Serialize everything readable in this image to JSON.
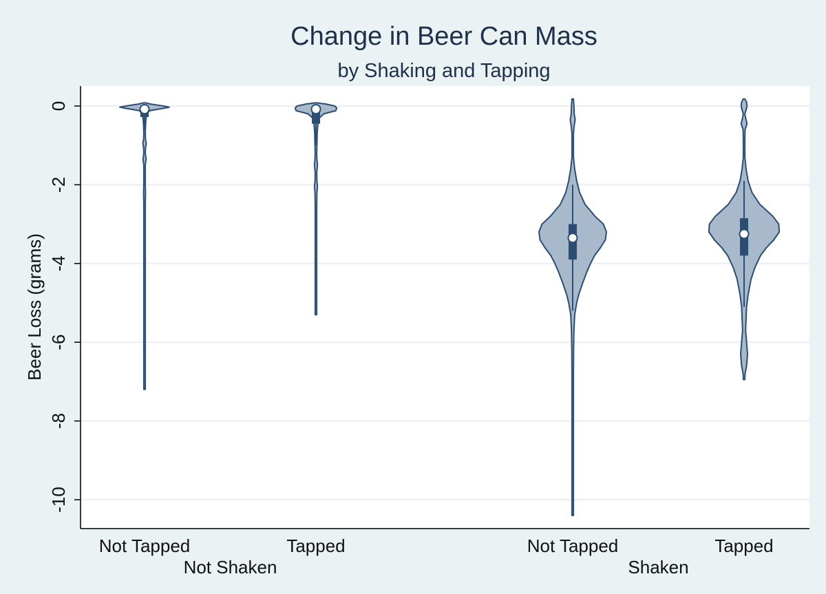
{
  "chart_data": {
    "type": "violin",
    "title": "Change in Beer Can Mass",
    "subtitle": "by Shaking and Tapping",
    "ylabel": "Beer Loss (grams)",
    "xlabel": "",
    "ylim": [
      -10.7,
      0.5
    ],
    "yticks": [
      0,
      -2,
      -4,
      -6,
      -8,
      -10
    ],
    "ytick_labels": [
      "0",
      "-2",
      "-4",
      "-6",
      "-8",
      "-10"
    ],
    "grid": true,
    "colors": {
      "background": "#eaf2f3",
      "plot_background": "#ffffff",
      "violin_fill": "#a9b9cc",
      "violin_stroke": "#2b4d72",
      "box_fill": "#2b4d72",
      "median_marker": "#ffffff",
      "grid": "#e8eef1",
      "text": "#1e2f4a"
    },
    "groups": [
      {
        "label": "Not Shaken",
        "categories": [
          "Not Tapped",
          "Tapped"
        ]
      },
      {
        "label": "Shaken",
        "categories": [
          "Not Tapped",
          "Tapped"
        ]
      }
    ],
    "series": [
      {
        "group": "Not Shaken",
        "category": "Not Tapped",
        "median": -0.08,
        "q1": -0.28,
        "q3": -0.02,
        "whisker_low": -0.6,
        "whisker_high": 0.05,
        "min": -7.2,
        "max": 0.08,
        "density": [
          [
            0.08,
            0.0
          ],
          [
            0.05,
            0.12
          ],
          [
            0.0,
            0.38
          ],
          [
            -0.03,
            0.5
          ],
          [
            -0.06,
            0.38
          ],
          [
            -0.12,
            0.1
          ],
          [
            -0.2,
            0.05
          ],
          [
            -0.3,
            0.03
          ],
          [
            -0.5,
            0.02
          ],
          [
            -0.7,
            0.013
          ],
          [
            -0.85,
            0.02
          ],
          [
            -0.95,
            0.035
          ],
          [
            -1.05,
            0.02
          ],
          [
            -1.2,
            0.015
          ],
          [
            -1.35,
            0.03
          ],
          [
            -1.5,
            0.013
          ],
          [
            -1.8,
            0.011
          ],
          [
            -2.0,
            0.012
          ],
          [
            -2.2,
            0.02
          ],
          [
            -2.45,
            0.011
          ],
          [
            -2.8,
            0.006
          ],
          [
            -3.5,
            0.004
          ],
          [
            -4.5,
            0.004
          ],
          [
            -5.5,
            0.004
          ],
          [
            -6.2,
            0.004
          ],
          [
            -7.2,
            0.0
          ]
        ]
      },
      {
        "group": "Not Shaken",
        "category": "Tapped",
        "median": -0.08,
        "q1": -0.45,
        "q3": -0.02,
        "whisker_low": -1.0,
        "whisker_high": 0.05,
        "min": -5.3,
        "max": 0.08,
        "density": [
          [
            0.08,
            0.0
          ],
          [
            0.05,
            0.2
          ],
          [
            0.0,
            0.38
          ],
          [
            -0.05,
            0.42
          ],
          [
            -0.12,
            0.4
          ],
          [
            -0.2,
            0.16
          ],
          [
            -0.3,
            0.07
          ],
          [
            -0.45,
            0.04
          ],
          [
            -0.7,
            0.025
          ],
          [
            -1.0,
            0.02
          ],
          [
            -1.2,
            0.015
          ],
          [
            -1.35,
            0.02
          ],
          [
            -1.5,
            0.03
          ],
          [
            -1.7,
            0.015
          ],
          [
            -1.9,
            0.018
          ],
          [
            -2.05,
            0.03
          ],
          [
            -2.2,
            0.02
          ],
          [
            -2.5,
            0.011
          ],
          [
            -3.0,
            0.008
          ],
          [
            -3.5,
            0.007
          ],
          [
            -4.0,
            0.007
          ],
          [
            -4.5,
            0.006
          ],
          [
            -5.0,
            0.005
          ],
          [
            -5.3,
            0.0
          ]
        ]
      },
      {
        "group": "Shaken",
        "category": "Not Tapped",
        "median": -3.35,
        "q1": -3.9,
        "q3": -3.0,
        "whisker_low": -5.2,
        "whisker_high": -2.0,
        "min": -10.4,
        "max": 0.18,
        "density": [
          [
            0.18,
            0.0
          ],
          [
            0.1,
            0.02
          ],
          [
            0.0,
            0.025
          ],
          [
            -0.2,
            0.03
          ],
          [
            -0.35,
            0.05
          ],
          [
            -0.5,
            0.03
          ],
          [
            -0.7,
            0.008
          ],
          [
            -1.0,
            0.003
          ],
          [
            -1.3,
            0.01
          ],
          [
            -1.6,
            0.04
          ],
          [
            -1.9,
            0.08
          ],
          [
            -2.2,
            0.14
          ],
          [
            -2.5,
            0.25
          ],
          [
            -2.8,
            0.45
          ],
          [
            -3.0,
            0.62
          ],
          [
            -3.2,
            0.68
          ],
          [
            -3.4,
            0.66
          ],
          [
            -3.6,
            0.56
          ],
          [
            -3.8,
            0.44
          ],
          [
            -4.0,
            0.36
          ],
          [
            -4.2,
            0.29
          ],
          [
            -4.5,
            0.2
          ],
          [
            -4.8,
            0.12
          ],
          [
            -5.0,
            0.08
          ],
          [
            -5.3,
            0.04
          ],
          [
            -5.7,
            0.025
          ],
          [
            -6.2,
            0.018
          ],
          [
            -6.8,
            0.013
          ],
          [
            -7.4,
            0.01
          ],
          [
            -7.8,
            0.004
          ],
          [
            -8.2,
            0.001
          ],
          [
            -8.7,
            0.003
          ],
          [
            -9.2,
            0.006
          ],
          [
            -9.8,
            0.005
          ],
          [
            -10.4,
            0.0
          ]
        ]
      },
      {
        "group": "Shaken",
        "category": "Tapped",
        "median": -3.25,
        "q1": -3.8,
        "q3": -2.85,
        "whisker_low": -5.1,
        "whisker_high": -1.9,
        "min": -6.95,
        "max": 0.18,
        "density": [
          [
            0.18,
            0.0
          ],
          [
            0.1,
            0.05
          ],
          [
            0.0,
            0.06
          ],
          [
            -0.1,
            0.04
          ],
          [
            -0.2,
            0.008
          ],
          [
            -0.3,
            0.03
          ],
          [
            -0.45,
            0.06
          ],
          [
            -0.6,
            0.02
          ],
          [
            -0.9,
            0.004
          ],
          [
            -1.3,
            0.01
          ],
          [
            -1.6,
            0.04
          ],
          [
            -1.9,
            0.08
          ],
          [
            -2.2,
            0.16
          ],
          [
            -2.5,
            0.32
          ],
          [
            -2.8,
            0.58
          ],
          [
            -3.0,
            0.7
          ],
          [
            -3.2,
            0.71
          ],
          [
            -3.4,
            0.6
          ],
          [
            -3.6,
            0.45
          ],
          [
            -3.8,
            0.33
          ],
          [
            -4.1,
            0.22
          ],
          [
            -4.4,
            0.14
          ],
          [
            -4.8,
            0.08
          ],
          [
            -5.1,
            0.05
          ],
          [
            -5.4,
            0.04
          ],
          [
            -5.7,
            0.03
          ],
          [
            -6.0,
            0.05
          ],
          [
            -6.3,
            0.07
          ],
          [
            -6.6,
            0.05
          ],
          [
            -6.8,
            0.02
          ],
          [
            -6.95,
            0.0
          ]
        ]
      }
    ]
  }
}
